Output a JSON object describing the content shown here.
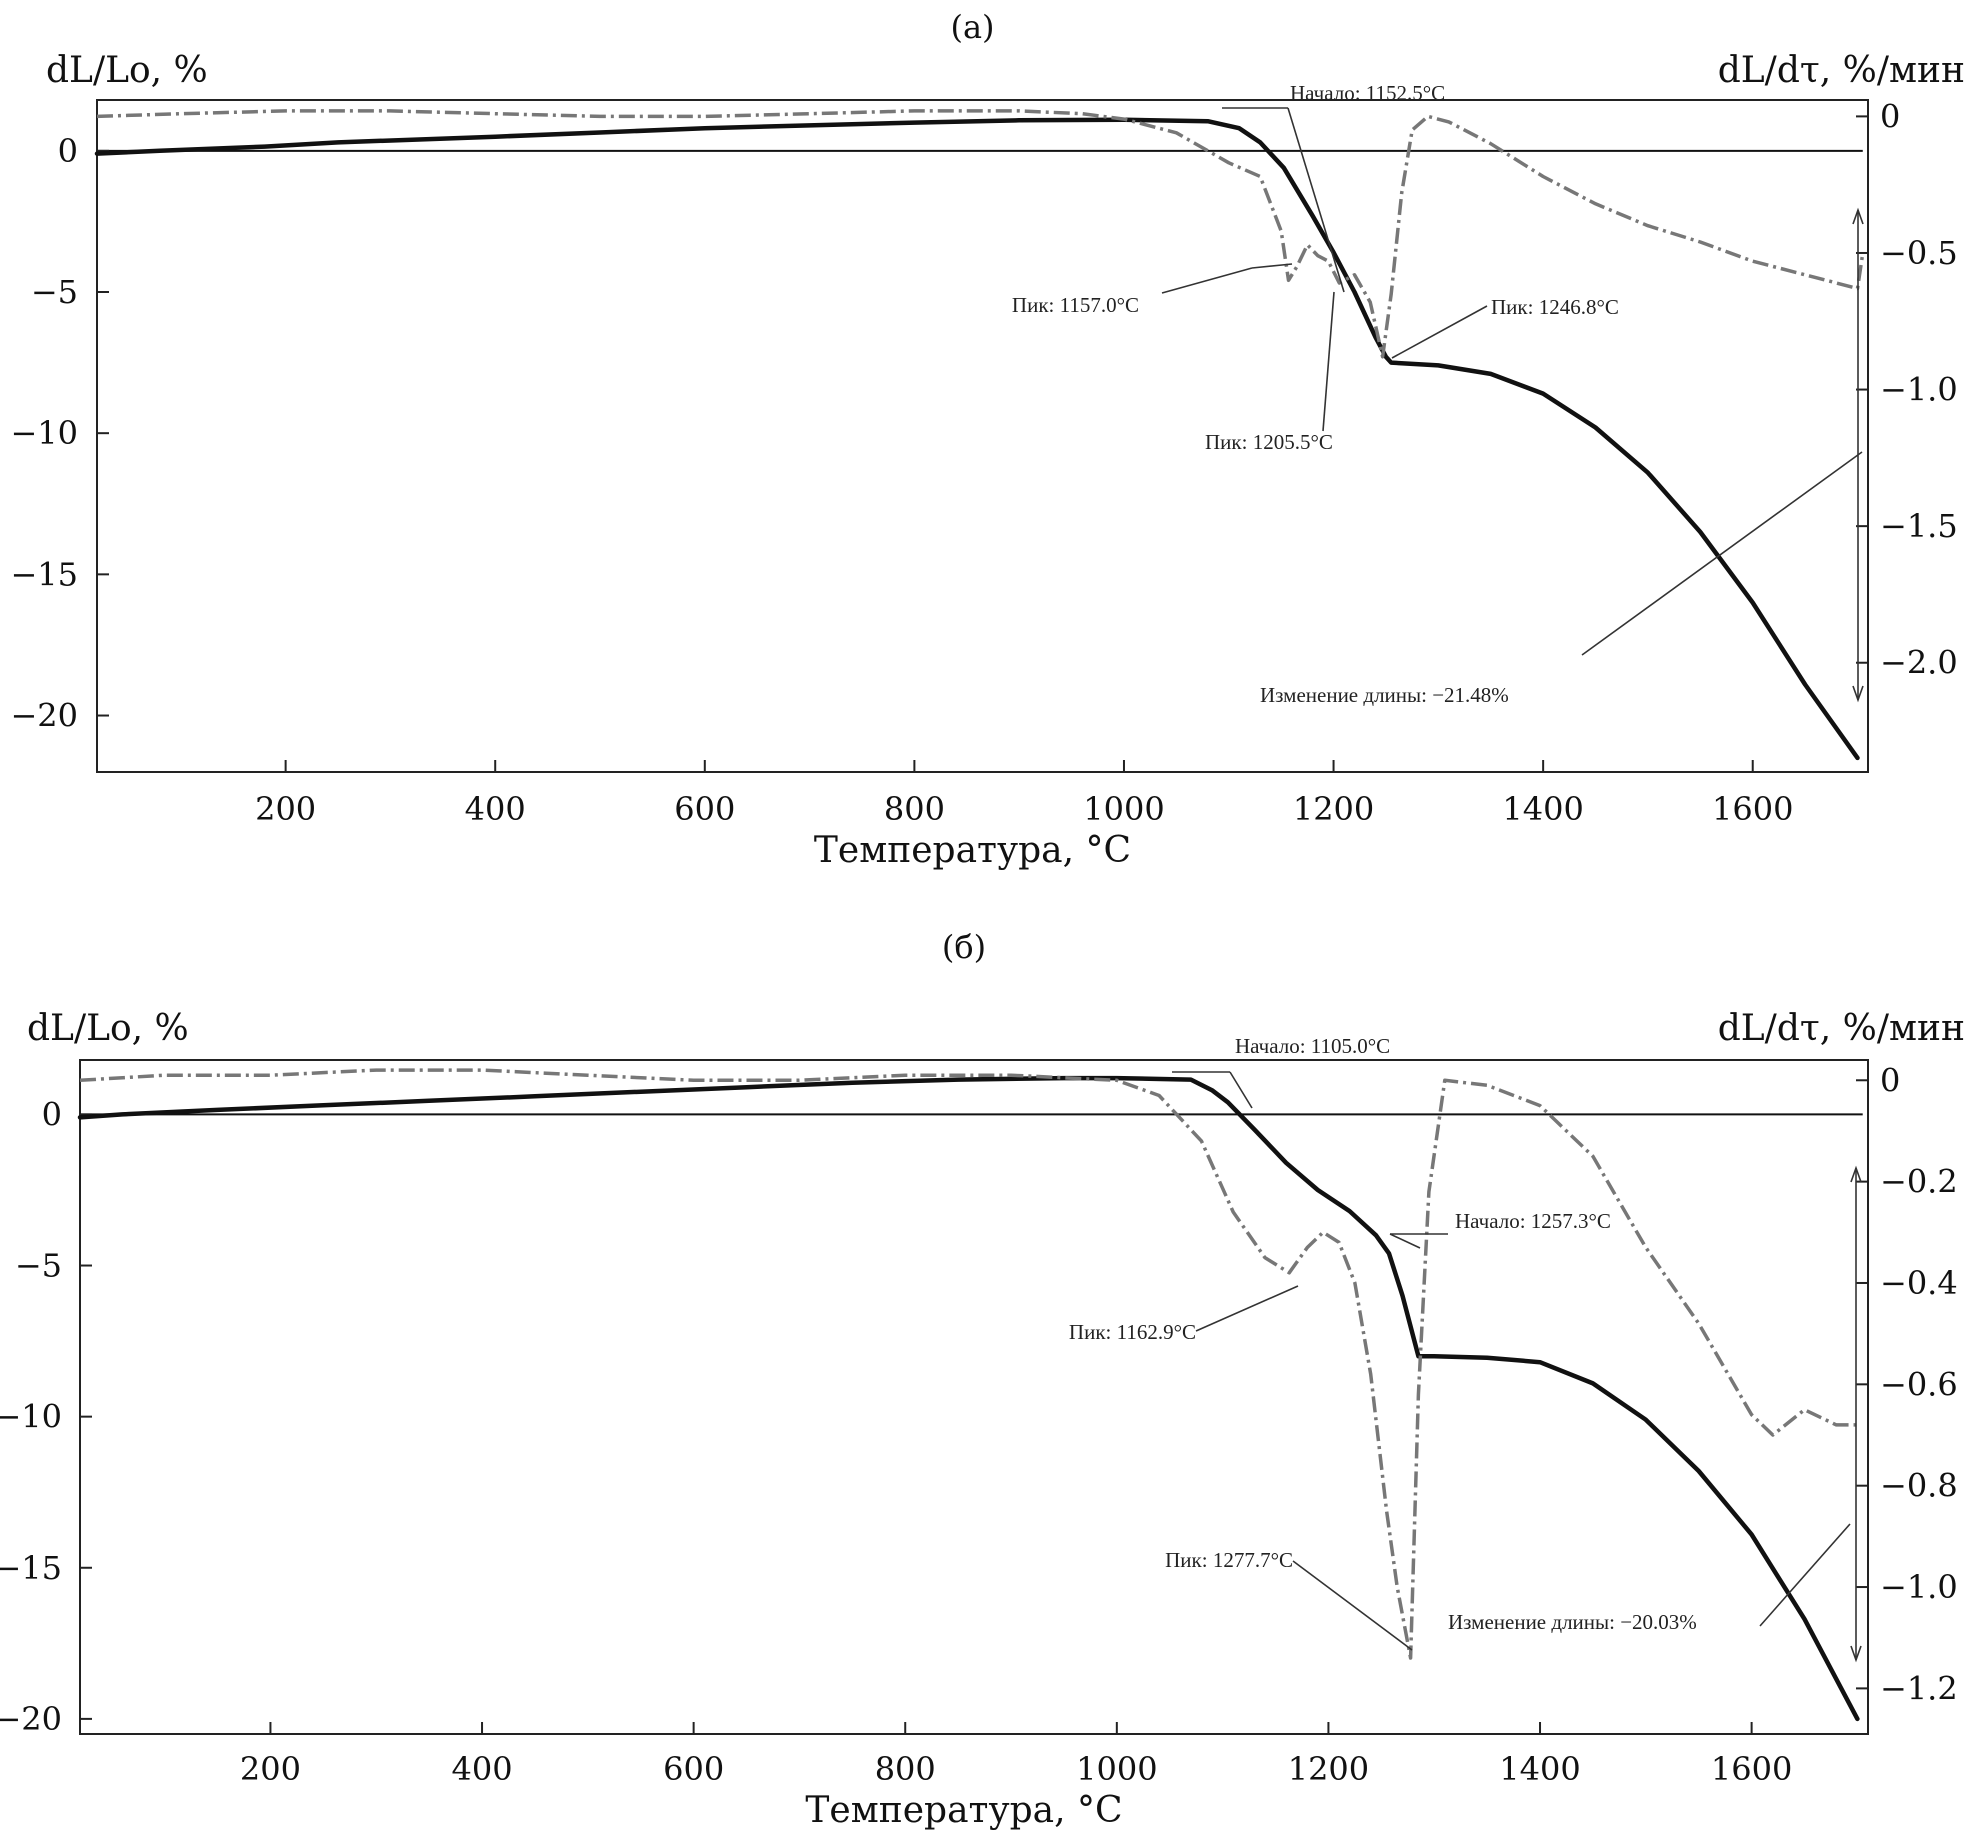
{
  "chart_data": [
    {
      "type": "line",
      "panel_label": "(a)",
      "xlabel": "Температура, °C",
      "ylabel_left": "dL/Lo, %",
      "ylabel_right": "dL/dτ, %/мин",
      "xlim": [
        20,
        1710
      ],
      "ylim_left": [
        -22,
        1.8
      ],
      "ylim_right": [
        -2.4,
        0.06
      ],
      "x_ticks": [
        200,
        400,
        600,
        800,
        1000,
        1200,
        1400,
        1600
      ],
      "y_left_ticks": [
        0,
        -5,
        -10,
        -15,
        -20
      ],
      "y_right_ticks": [
        0,
        -0.5,
        -1.0,
        -1.5,
        -2.0
      ],
      "y_right_tick_labels": [
        "0",
        "−0.5",
        "−1.0",
        "−1.5",
        "−2.0"
      ],
      "y_left_tick_labels": [
        "0",
        "−5",
        "−10",
        "−15",
        "−20"
      ],
      "series": [
        {
          "axis": "left",
          "style": "solid",
          "x": [
            20,
            80,
            180,
            250,
            400,
            500,
            600,
            700,
            800,
            900,
            1000,
            1080,
            1110,
            1130,
            1152.5,
            1180,
            1200,
            1220,
            1240,
            1250,
            1255,
            1300,
            1350,
            1400,
            1450,
            1500,
            1550,
            1600,
            1650,
            1700
          ],
          "y": [
            -0.1,
            0.0,
            0.15,
            0.3,
            0.5,
            0.65,
            0.8,
            0.9,
            1.0,
            1.08,
            1.1,
            1.05,
            0.8,
            0.3,
            -0.6,
            -2.3,
            -3.6,
            -5.0,
            -6.6,
            -7.3,
            -7.5,
            -7.6,
            -7.9,
            -8.6,
            -9.8,
            -11.4,
            -13.5,
            -16.0,
            -18.9,
            -21.5
          ]
        },
        {
          "axis": "right",
          "style": "dash-dot",
          "x": [
            20,
            100,
            200,
            300,
            400,
            500,
            600,
            700,
            800,
            900,
            960,
            1000,
            1050,
            1100,
            1130,
            1150,
            1157,
            1165,
            1175,
            1185,
            1195,
            1205.5,
            1220,
            1235,
            1246.8,
            1255,
            1265,
            1275,
            1290,
            1310,
            1350,
            1400,
            1450,
            1500,
            1550,
            1600,
            1650,
            1700,
            1705
          ],
          "y": [
            0.0,
            0.01,
            0.02,
            0.02,
            0.01,
            0.0,
            0.0,
            0.01,
            0.02,
            0.02,
            0.01,
            -0.01,
            -0.06,
            -0.17,
            -0.22,
            -0.42,
            -0.6,
            -0.55,
            -0.47,
            -0.51,
            -0.53,
            -0.61,
            -0.58,
            -0.68,
            -0.88,
            -0.65,
            -0.28,
            -0.05,
            0.0,
            -0.02,
            -0.1,
            -0.22,
            -0.32,
            -0.4,
            -0.46,
            -0.53,
            -0.58,
            -0.63,
            -0.5
          ]
        }
      ],
      "annotations": [
        {
          "text": "Начало: 1152.5°C"
        },
        {
          "text": "Пик: 1157.0°C"
        },
        {
          "text": "Пик: 1246.8°C"
        },
        {
          "text": "Пик: 1205.5°C"
        },
        {
          "text": "Изменение длины: −21.48%"
        }
      ]
    },
    {
      "type": "line",
      "panel_label": "(б)",
      "xlabel": "Температура, °C",
      "ylabel_left": "dL/Lo, %",
      "ylabel_right": "dL/dτ, %/мин",
      "xlim": [
        20,
        1710
      ],
      "ylim_left": [
        -20.5,
        1.8
      ],
      "ylim_right": [
        -1.29,
        0.04
      ],
      "x_ticks": [
        200,
        400,
        600,
        800,
        1000,
        1200,
        1400,
        1600
      ],
      "y_left_ticks": [
        0,
        -5,
        -10,
        -15,
        -20
      ],
      "y_right_ticks": [
        0,
        -0.2,
        -0.4,
        -0.6,
        -0.8,
        -1.0,
        -1.2
      ],
      "y_right_tick_labels": [
        "0",
        "−0.2",
        "−0.4",
        "−0.6",
        "−0.8",
        "−1.0",
        "−1.2"
      ],
      "y_left_tick_labels": [
        "0",
        "−5",
        "−10",
        "−15",
        "−20"
      ],
      "series": [
        {
          "axis": "left",
          "style": "solid",
          "x": [
            20,
            60,
            150,
            250,
            350,
            450,
            550,
            650,
            750,
            850,
            950,
            1000,
            1070,
            1090,
            1105,
            1130,
            1160,
            1190,
            1220,
            1245,
            1257.3,
            1270,
            1285,
            1300,
            1350,
            1400,
            1450,
            1500,
            1550,
            1600,
            1650,
            1700
          ],
          "y": [
            -0.1,
            0.0,
            0.15,
            0.3,
            0.45,
            0.6,
            0.75,
            0.9,
            1.05,
            1.15,
            1.2,
            1.2,
            1.15,
            0.8,
            0.4,
            -0.5,
            -1.6,
            -2.5,
            -3.2,
            -4.0,
            -4.6,
            -6.0,
            -8.0,
            -8.0,
            -8.05,
            -8.2,
            -8.9,
            -10.1,
            -11.8,
            -13.9,
            -16.7,
            -20.0
          ]
        },
        {
          "axis": "right",
          "style": "dash-dot",
          "x": [
            20,
            100,
            200,
            300,
            400,
            500,
            600,
            700,
            800,
            900,
            1000,
            1040,
            1080,
            1110,
            1140,
            1162.9,
            1180,
            1195,
            1210,
            1225,
            1240,
            1255,
            1265,
            1277.7,
            1285,
            1295,
            1310,
            1350,
            1400,
            1450,
            1500,
            1550,
            1600,
            1620,
            1650,
            1680,
            1700
          ],
          "y": [
            0.0,
            0.01,
            0.01,
            0.02,
            0.02,
            0.01,
            0.0,
            0.0,
            0.01,
            0.01,
            0.0,
            -0.03,
            -0.12,
            -0.26,
            -0.35,
            -0.38,
            -0.33,
            -0.3,
            -0.32,
            -0.4,
            -0.58,
            -0.85,
            -1.0,
            -1.14,
            -0.62,
            -0.22,
            0.0,
            -0.01,
            -0.05,
            -0.15,
            -0.33,
            -0.48,
            -0.66,
            -0.7,
            -0.65,
            -0.68,
            -0.68
          ]
        }
      ],
      "annotations": [
        {
          "text": "Начало: 1105.0°C"
        },
        {
          "text": "Начало: 1257.3°C"
        },
        {
          "text": "Пик: 1162.9°C"
        },
        {
          "text": "Пик: 1277.7°C"
        },
        {
          "text": "Изменение длины: −20.03%"
        }
      ]
    }
  ]
}
